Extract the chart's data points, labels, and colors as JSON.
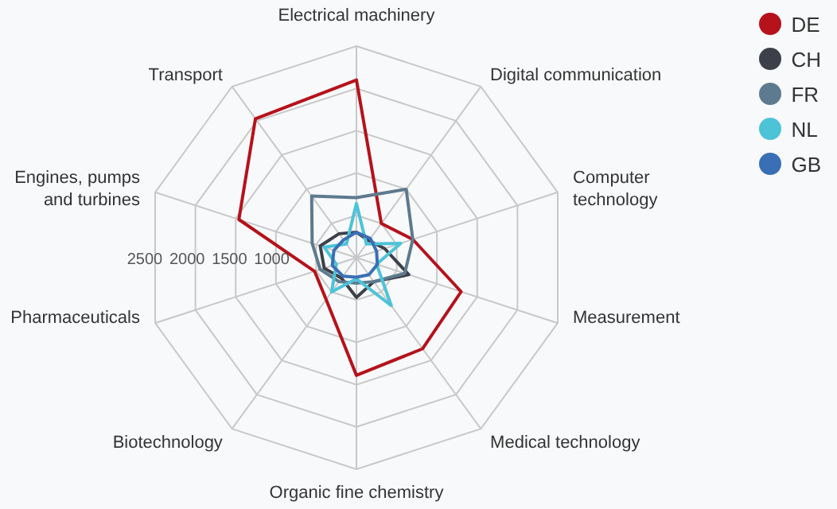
{
  "chart_data": {
    "type": "radar",
    "categories": [
      "Electrical machinery",
      "Digital communication",
      "Computer technology",
      "Measurement",
      "Medical technology",
      "Organic fine chemistry",
      "Biotechnology",
      "Pharmaceuticals",
      "Engines, pumps and turbines",
      "Transport"
    ],
    "series": [
      {
        "name": "DE",
        "color": "#b5121b",
        "values": [
          2100,
          500,
          700,
          1300,
          1330,
          1390,
          610,
          520,
          1460,
          2030
        ]
      },
      {
        "name": "CH",
        "color": "#3d4049",
        "values": [
          300,
          250,
          350,
          650,
          350,
          470,
          300,
          400,
          450,
          350
        ]
      },
      {
        "name": "FR",
        "color": "#5d7a8e",
        "values": [
          710,
          1000,
          700,
          600,
          350,
          300,
          350,
          450,
          550,
          900
        ]
      },
      {
        "name": "NL",
        "color": "#4dc3d8",
        "values": [
          640,
          200,
          550,
          250,
          700,
          250,
          500,
          250,
          400,
          200
        ]
      },
      {
        "name": "GB",
        "color": "#3a6fb5",
        "values": [
          300,
          280,
          250,
          260,
          250,
          230,
          270,
          300,
          280,
          260
        ]
      }
    ],
    "ylim": [
      0,
      2500
    ],
    "yticks": [
      1000,
      1500,
      2000,
      2500
    ],
    "grid": true,
    "legend": "top right"
  }
}
